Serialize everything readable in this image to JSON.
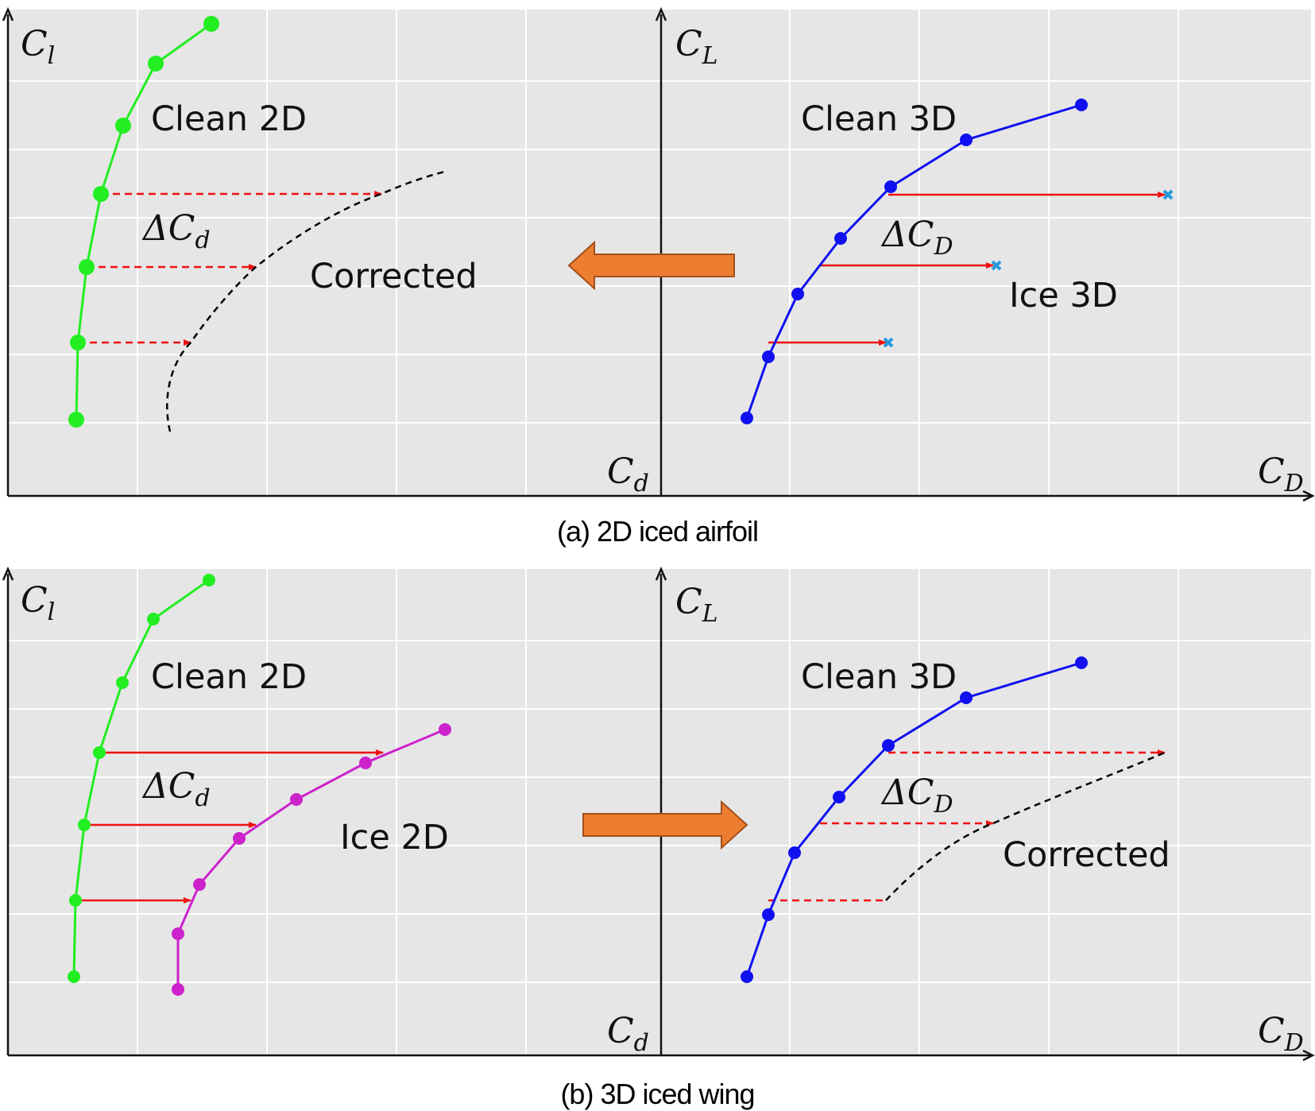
{
  "panel_a": {
    "caption": "(a) 2D iced airfoil",
    "left": {
      "y_axis": {
        "main": "C",
        "sub": "l"
      },
      "x_axis": {
        "main": "C",
        "sub": "d"
      },
      "clean_label": "Clean 2D",
      "delta_label": {
        "prefix": "Δ",
        "main": "C",
        "sub": "d"
      },
      "corrected_label": "Corrected"
    },
    "right": {
      "y_axis": {
        "main": "C",
        "sub": "L"
      },
      "x_axis": {
        "main": "C",
        "sub": "D"
      },
      "clean_label": "Clean 3D",
      "delta_label": {
        "prefix": "Δ",
        "main": "C",
        "sub": "D"
      },
      "ice_label": "Ice 3D"
    },
    "arrow_direction": "left"
  },
  "panel_b": {
    "caption": "(b) 3D iced wing",
    "left": {
      "y_axis": {
        "main": "C",
        "sub": "l"
      },
      "x_axis": {
        "main": "C",
        "sub": "d"
      },
      "clean_label": "Clean 2D",
      "delta_label": {
        "prefix": "Δ",
        "main": "C",
        "sub": "d"
      },
      "ice_label": "Ice 2D"
    },
    "right": {
      "y_axis": {
        "main": "C",
        "sub": "L"
      },
      "x_axis": {
        "main": "C",
        "sub": "D"
      },
      "clean_label": "Clean 3D",
      "delta_label": {
        "prefix": "Δ",
        "main": "C",
        "sub": "D"
      },
      "corrected_label": "Corrected"
    },
    "arrow_direction": "right"
  },
  "colors": {
    "clean_2d": "#22ee22",
    "clean_3d": "#1010f0",
    "ice_2d": "#cc22cc",
    "ice_3d_marker": "#2299dd",
    "delta_arrow": "#ee1111",
    "corrected": "#000000",
    "transfer_arrow": "#ed7d31",
    "plot_bg": "#e6e6e6",
    "grid": "#ffffff"
  }
}
